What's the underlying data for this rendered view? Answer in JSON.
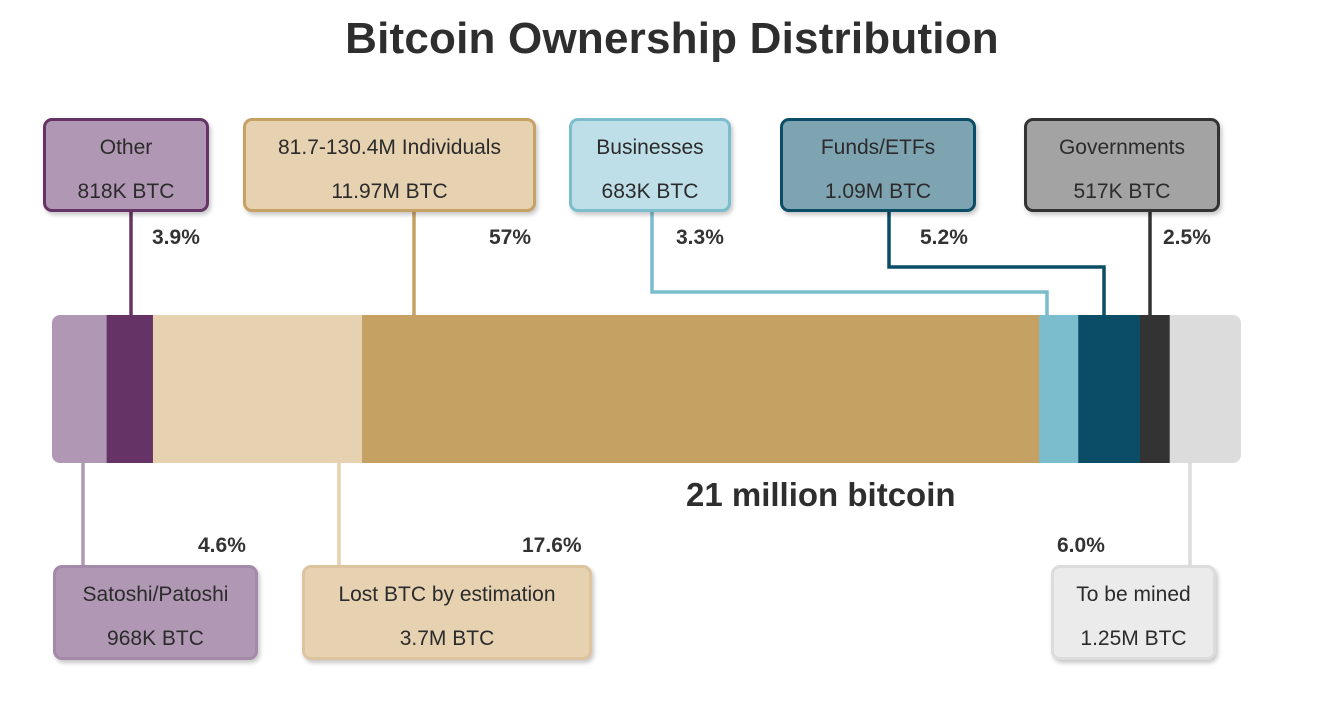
{
  "chart_data": {
    "type": "bar",
    "orientation": "horizontal-stacked",
    "title": "Bitcoin Ownership Distribution",
    "total_label": "21 million bitcoin",
    "categories": [
      "Satoshi/Patoshi",
      "Other",
      "Lost BTC by estimation",
      "81.7-130.4M Individuals",
      "Businesses",
      "Funds/ETFs",
      "Governments",
      "To be mined"
    ],
    "segments": [
      {
        "label": "Satoshi/Patoshi",
        "amount": "968K BTC",
        "percent_label": "4.6%",
        "value": 4.6,
        "color": "#b097b4",
        "label_position": "below"
      },
      {
        "label": "Other",
        "amount": "818K BTC",
        "percent_label": "3.9%",
        "value": 3.9,
        "color": "#663366",
        "label_position": "above"
      },
      {
        "label": "Lost BTC by estimation",
        "amount": "3.7M BTC",
        "percent_label": "17.6%",
        "value": 17.6,
        "color": "#e6d1b1",
        "label_position": "below"
      },
      {
        "label": "81.7-130.4M Individuals",
        "amount": "11.97M BTC",
        "percent_label": "57%",
        "value": 57,
        "color": "#c6a164",
        "label_position": "above"
      },
      {
        "label": "Businesses",
        "amount": "683K BTC",
        "percent_label": "3.3%",
        "value": 3.3,
        "color": "#7bbccd",
        "label_position": "above"
      },
      {
        "label": "Funds/ETFs",
        "amount": "1.09M BTC",
        "percent_label": "5.2%",
        "value": 5.2,
        "color": "#0b4d66",
        "label_position": "above"
      },
      {
        "label": "Governments",
        "amount": "517K BTC",
        "percent_label": "2.5%",
        "value": 2.5,
        "color": "#333333",
        "label_position": "above"
      },
      {
        "label": "To be mined",
        "amount": "1.25M BTC",
        "percent_label": "6.0%",
        "value": 6.0,
        "color": "#dcdcdc",
        "label_position": "below"
      }
    ],
    "legend": "none",
    "grid": false
  }
}
